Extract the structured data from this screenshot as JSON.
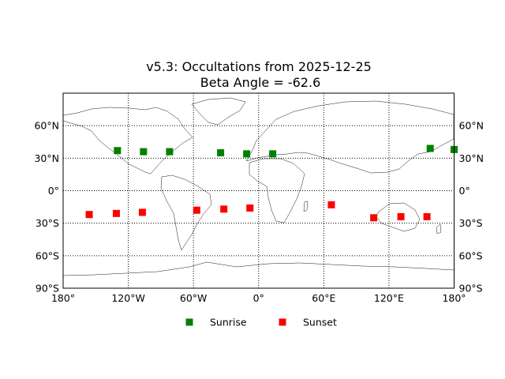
{
  "chart_data": {
    "type": "scatter",
    "title": "v5.3: Occultations from 2025-12-25",
    "subtitle": "Beta Angle = -62.6",
    "xlim": [
      -180,
      180
    ],
    "ylim": [
      -90,
      90
    ],
    "x_ticks": [
      -180,
      -120,
      -60,
      0,
      60,
      120,
      180
    ],
    "y_ticks": [
      -90,
      -60,
      -30,
      0,
      30,
      60
    ],
    "x_tick_labels": [
      "180°",
      "120°W",
      "60°W",
      "0°",
      "60°E",
      "120°E",
      "180°"
    ],
    "y_tick_labels": [
      "90°S",
      "60°S",
      "30°S",
      "0°",
      "30°N",
      "60°N"
    ],
    "grid": true,
    "legend_position": "bottom-center",
    "basemap": "world coastlines",
    "series": [
      {
        "name": "Sunrise",
        "color": "#008000",
        "marker": "square",
        "x": [
          -130,
          -106,
          -82,
          -35,
          -11,
          13,
          158,
          180
        ],
        "y": [
          37,
          36,
          36,
          35,
          34,
          34,
          39,
          38
        ]
      },
      {
        "name": "Sunset",
        "color": "#ff0000",
        "marker": "square",
        "x": [
          -156,
          -131,
          -107,
          -57,
          -32,
          -8,
          67,
          106,
          131,
          155
        ],
        "y": [
          -22,
          -21,
          -20,
          -18,
          -17,
          -16,
          -13,
          -25,
          -24,
          -24
        ]
      }
    ]
  }
}
